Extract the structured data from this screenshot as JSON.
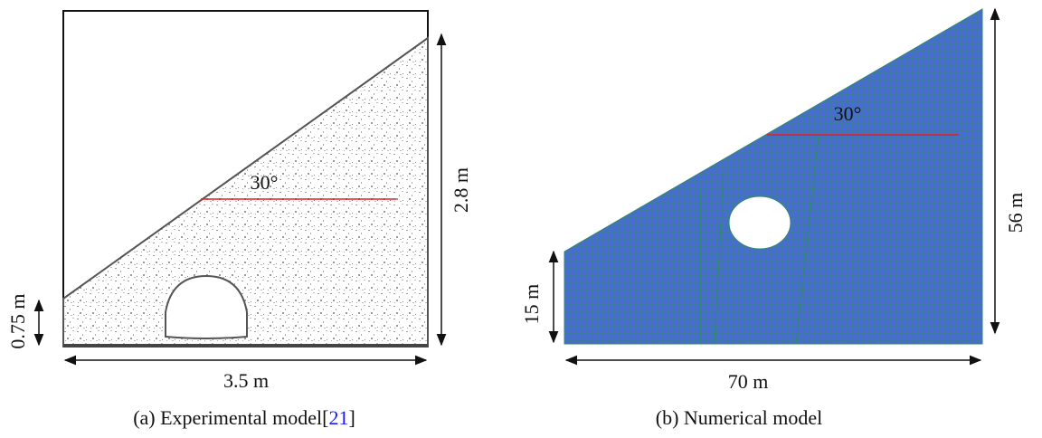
{
  "panel_a": {
    "angle": "30°",
    "height": "2.8 m",
    "base_height": "0.75 m",
    "width": "3.5 m",
    "caption": [
      "(a) Experimental model[",
      "21",
      "]"
    ]
  },
  "panel_b": {
    "angle": "30°",
    "height": "56 m",
    "base_height": "15 m",
    "width": "70 m",
    "caption": "(b) Numerical model"
  }
}
